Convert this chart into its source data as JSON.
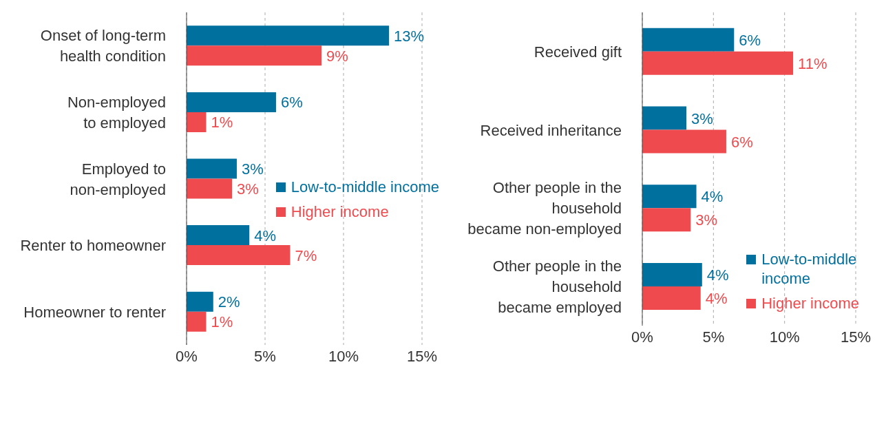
{
  "chart_data": [
    {
      "type": "bar",
      "orientation": "horizontal",
      "categories": [
        "Onset of long-term\nhealth condition",
        "Non-employed\nto employed",
        "Employed to\nnon-employed",
        "Renter to homeowner",
        "Homeowner to renter"
      ],
      "series": [
        {
          "name": "Low-to-middle income",
          "color": "#00709e",
          "values": [
            12.9,
            5.7,
            3.2,
            4.0,
            1.7
          ],
          "value_labels": [
            "13%",
            "6%",
            "3%",
            "4%",
            "2%"
          ]
        },
        {
          "name": "Higher income",
          "color": "#ef4b4e",
          "values": [
            8.6,
            1.25,
            2.9,
            6.6,
            1.25
          ],
          "value_labels": [
            "9%",
            "1%",
            "3%",
            "7%",
            "1%"
          ]
        }
      ],
      "xlim": [
        0,
        15
      ],
      "xticks": [
        {
          "value": 0,
          "label": "0%"
        },
        {
          "value": 5,
          "label": "5%"
        },
        {
          "value": 10,
          "label": "10%"
        },
        {
          "value": 15,
          "label": "15%"
        }
      ],
      "grid": "x",
      "legend": "right"
    },
    {
      "type": "bar",
      "orientation": "horizontal",
      "categories": [
        "Received gift",
        "Received inheritance",
        "Other people in the\nhousehold\nbecame non-employed",
        "Other people in the\nhousehold\nbecame employed"
      ],
      "series": [
        {
          "name": "Low-to-middle\nincome",
          "color": "#00709e",
          "values": [
            6.45,
            3.1,
            3.8,
            4.2
          ],
          "value_labels": [
            "6%",
            "3%",
            "4%",
            "4%"
          ]
        },
        {
          "name": "Higher income",
          "color": "#ef4b4e",
          "values": [
            10.6,
            5.9,
            3.4,
            4.1
          ],
          "value_labels": [
            "11%",
            "6%",
            "3%",
            "4%"
          ]
        }
      ],
      "xlim": [
        0,
        15
      ],
      "xticks": [
        {
          "value": 0,
          "label": "0%"
        },
        {
          "value": 5,
          "label": "5%"
        },
        {
          "value": 10,
          "label": "10%"
        },
        {
          "value": 15,
          "label": "15%"
        }
      ],
      "grid": "x",
      "legend": "bottom right"
    }
  ]
}
